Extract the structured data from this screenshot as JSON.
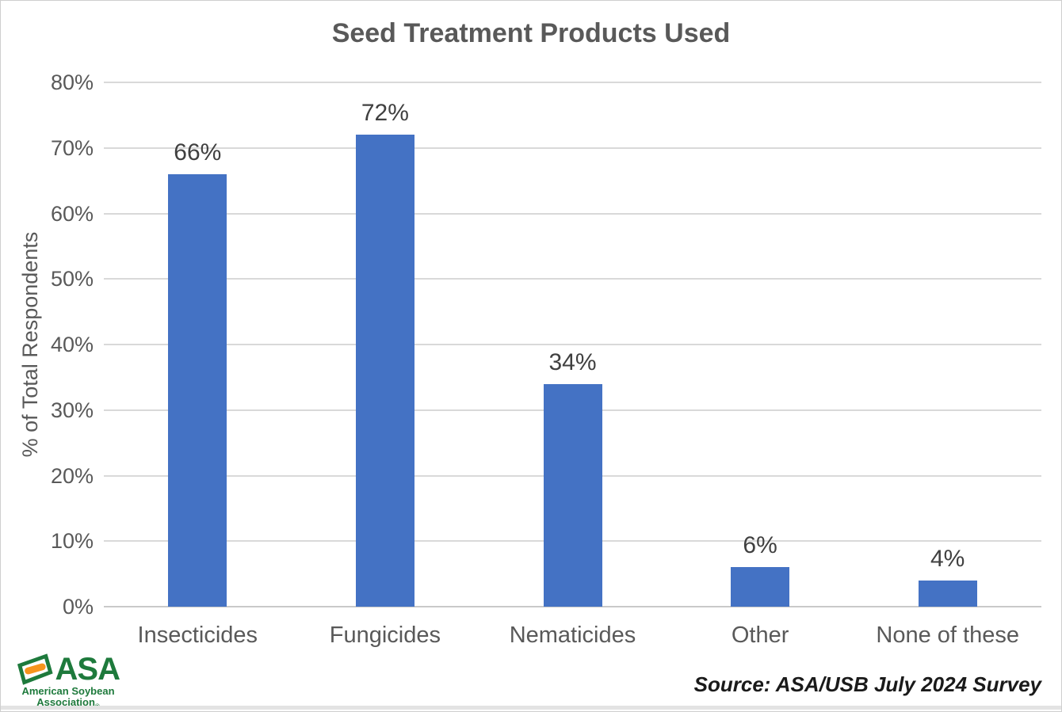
{
  "chart_data": {
    "type": "bar",
    "title": "Seed Treatment Products Used",
    "categories": [
      "Insecticides",
      "Fungicides",
      "Nematicides",
      "Other",
      "None of these"
    ],
    "values": [
      66,
      72,
      34,
      6,
      4
    ],
    "value_labels": [
      "66%",
      "72%",
      "34%",
      "6%",
      "4%"
    ],
    "xlabel": "",
    "ylabel": "% of Total Respondents",
    "ylim": [
      0,
      80
    ],
    "ytick_step": 10,
    "yticks": [
      "0%",
      "10%",
      "20%",
      "30%",
      "40%",
      "50%",
      "60%",
      "70%",
      "80%"
    ],
    "grid": true,
    "legend": "none",
    "bar_color": "#4472c4",
    "gridline_color": "#d9d9d9",
    "axis_text_color": "#595959",
    "data_label_color": "#404040"
  },
  "footer": {
    "source": "Source: ASA/USB July 2024 Survey",
    "logo": {
      "text": "ASA",
      "line1": "American Soybean",
      "line2": "Association",
      "registered": "®",
      "green": "#1e7a3c",
      "orange": "#f7941d"
    }
  }
}
